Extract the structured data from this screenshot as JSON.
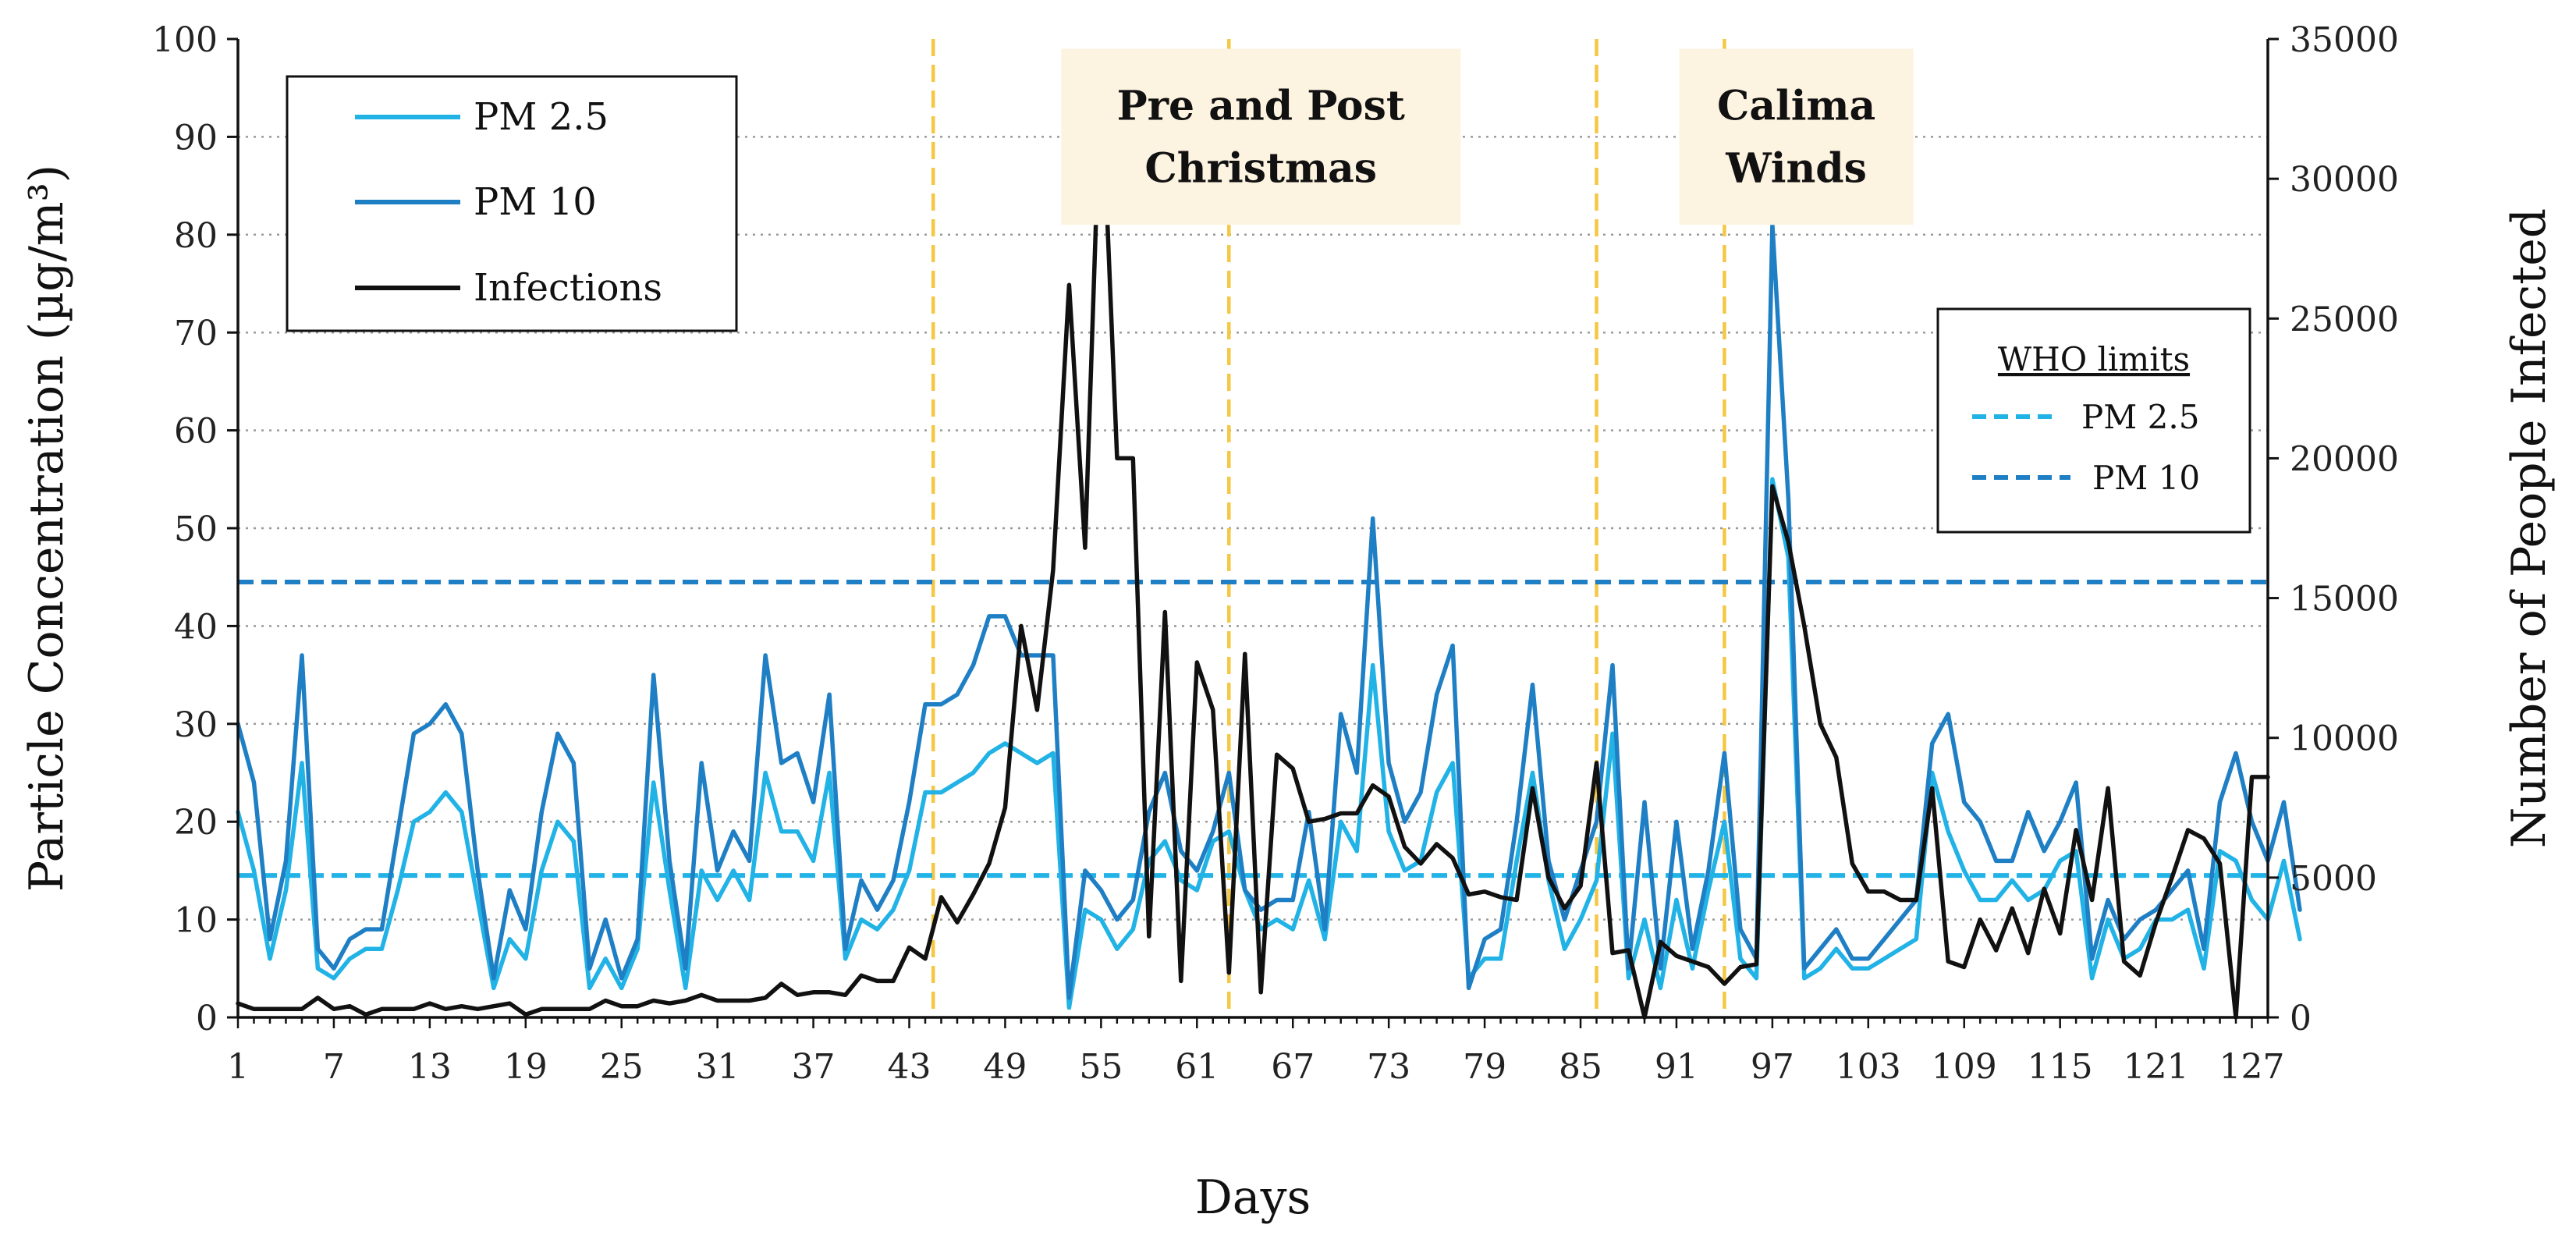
{
  "chart_data": {
    "type": "line",
    "xlabel": "Days",
    "ylabel": "Particle Concentration (µg/m³)",
    "y2label": "Number of People Infected",
    "ylim": [
      0,
      100
    ],
    "y2lim": [
      0,
      35000
    ],
    "xlim": [
      1,
      128
    ],
    "yticks": [
      0,
      10,
      20,
      30,
      40,
      50,
      60,
      70,
      80,
      90,
      100
    ],
    "y2ticks": [
      0,
      5000,
      10000,
      15000,
      20000,
      25000,
      30000,
      35000
    ],
    "xticks": [
      1,
      7,
      13,
      19,
      25,
      31,
      37,
      43,
      49,
      55,
      61,
      67,
      73,
      79,
      85,
      91,
      97,
      103,
      109,
      115,
      121,
      127
    ],
    "grid": "horizontal dotted",
    "legend": {
      "position": "top-left",
      "entries": [
        {
          "label": "PM 2.5",
          "color": "#21b2e6"
        },
        {
          "label": "PM 10",
          "color": "#1f7fc4"
        },
        {
          "label": "Infections",
          "color": "#111111"
        }
      ]
    },
    "who_legend": {
      "position": "right",
      "title": "WHO limits",
      "entries": [
        {
          "label": "PM 2.5",
          "color": "#21b2e6"
        },
        {
          "label": "PM 10",
          "color": "#1f7fc4"
        }
      ]
    },
    "who_limits": [
      {
        "name": "PM 2.5",
        "value": 14.5,
        "color": "#21b2e6"
      },
      {
        "name": "PM 10",
        "value": 44.5,
        "color": "#1f7fc4"
      }
    ],
    "vlines": [
      {
        "day": 44.5,
        "color": "#f6c743"
      },
      {
        "day": 63,
        "color": "#f6c743"
      },
      {
        "day": 86,
        "color": "#f6c743"
      },
      {
        "day": 94,
        "color": "#f6c743"
      }
    ],
    "annotations": [
      {
        "lines": [
          "Pre and Post",
          "Christmas"
        ],
        "center_day": 65,
        "y_top": 99,
        "y_bottom": 81
      },
      {
        "lines": [
          "Calima",
          "Winds"
        ],
        "center_day": 98.5,
        "y_top": 99,
        "y_bottom": 81
      }
    ],
    "series": [
      {
        "name": "PM 2.5",
        "axis": "left",
        "color": "#21b2e6",
        "values": [
          21,
          15,
          6,
          13,
          26,
          5,
          4,
          6,
          7,
          7,
          13,
          20,
          21,
          23,
          21,
          12,
          3,
          8,
          6,
          15,
          20,
          18,
          3,
          6,
          3,
          7,
          24,
          13,
          3,
          15,
          12,
          15,
          12,
          25,
          19,
          19,
          16,
          25,
          6,
          10,
          9,
          11,
          15,
          23,
          23,
          24,
          25,
          27,
          28,
          27,
          26,
          27,
          1,
          11,
          10,
          7,
          9,
          16,
          18,
          14,
          13,
          18,
          19,
          13,
          9,
          10,
          9,
          14,
          8,
          20,
          17,
          36,
          19,
          15,
          16,
          23,
          26,
          4,
          6,
          6,
          16,
          25,
          14,
          7,
          10,
          14,
          29,
          4,
          10,
          3,
          12,
          5,
          13,
          20,
          6,
          4,
          55,
          47,
          4,
          5,
          7,
          5,
          5,
          6,
          7,
          8,
          25,
          19,
          15,
          12,
          12,
          14,
          12,
          13,
          16,
          17,
          4,
          10,
          6,
          7,
          10,
          10,
          11,
          5,
          17,
          16,
          12,
          10,
          16,
          8
        ]
      },
      {
        "name": "PM 10",
        "axis": "left",
        "color": "#1f7fc4",
        "values": [
          30,
          24,
          8,
          16,
          37,
          7,
          5,
          8,
          9,
          9,
          19,
          29,
          30,
          32,
          29,
          15,
          4,
          13,
          9,
          21,
          29,
          26,
          5,
          10,
          4,
          8,
          35,
          16,
          5,
          26,
          15,
          19,
          16,
          37,
          26,
          27,
          22,
          33,
          7,
          14,
          11,
          14,
          22,
          32,
          32,
          33,
          36,
          41,
          41,
          37,
          37,
          37,
          2,
          15,
          13,
          10,
          12,
          21,
          25,
          17,
          15,
          19,
          25,
          13,
          11,
          12,
          12,
          21,
          9,
          31,
          25,
          51,
          26,
          20,
          23,
          33,
          38,
          3,
          8,
          9,
          20,
          34,
          16,
          10,
          15,
          20,
          36,
          5,
          22,
          5,
          20,
          7,
          15,
          27,
          9,
          6,
          81,
          53,
          5,
          7,
          9,
          6,
          6,
          8,
          10,
          12,
          28,
          31,
          22,
          20,
          16,
          16,
          21,
          17,
          20,
          24,
          6,
          12,
          8,
          10,
          11,
          13,
          15,
          7,
          22,
          27,
          20,
          16,
          22,
          11
        ]
      },
      {
        "name": "Infections",
        "axis": "right",
        "color": "#111111",
        "values": [
          500,
          300,
          300,
          300,
          300,
          700,
          300,
          400,
          100,
          300,
          300,
          300,
          500,
          300,
          400,
          300,
          400,
          500,
          100,
          300,
          300,
          300,
          300,
          600,
          400,
          400,
          600,
          500,
          600,
          800,
          600,
          600,
          600,
          700,
          1200,
          800,
          900,
          900,
          800,
          1500,
          1300,
          1300,
          2500,
          2100,
          4300,
          3400,
          4400,
          5500,
          7500,
          14000,
          11000,
          16000,
          26200,
          16800,
          34000,
          20000,
          20000,
          2900,
          14500,
          1300,
          12700,
          11000,
          1600,
          13000,
          900,
          9400,
          8900,
          7000,
          7100,
          7300,
          7300,
          8300,
          7900,
          6100,
          5500,
          6200,
          5700,
          4400,
          4500,
          4300,
          4200,
          8200,
          5000,
          3900,
          4700,
          9100,
          2300,
          2400,
          0,
          2700,
          2200,
          2000,
          1800,
          1200,
          1800,
          1900,
          19000,
          17000,
          14000,
          10500,
          9300,
          5500,
          4500,
          4500,
          4200,
          4200,
          8200,
          2000,
          1800,
          3500,
          2400,
          3900,
          2300,
          4600,
          3000,
          6700,
          4200,
          8200,
          2000,
          1500,
          3400,
          5000,
          6700,
          6400,
          5500,
          0,
          8600,
          8600
        ]
      }
    ]
  }
}
